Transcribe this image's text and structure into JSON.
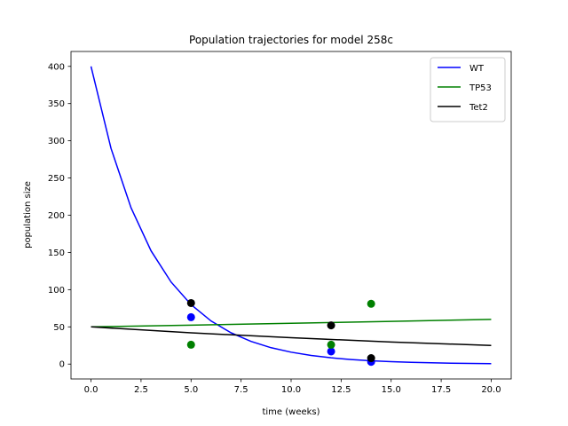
{
  "chart_data": {
    "type": "line",
    "title": "Population trajectories for model 258c",
    "xlabel": "time (weeks)",
    "ylabel": "population size",
    "xlim": [
      -1,
      21
    ],
    "ylim": [
      -20,
      420
    ],
    "xticks": [
      0.0,
      2.5,
      5.0,
      7.5,
      10.0,
      12.5,
      15.0,
      17.5,
      20.0
    ],
    "xtick_labels": [
      "0.0",
      "2.5",
      "5.0",
      "7.5",
      "10.0",
      "12.5",
      "15.0",
      "17.5",
      "20.0"
    ],
    "yticks": [
      0,
      50,
      100,
      150,
      200,
      250,
      300,
      350,
      400
    ],
    "ytick_labels": [
      "0",
      "50",
      "100",
      "150",
      "200",
      "250",
      "300",
      "350",
      "400"
    ],
    "grid": false,
    "legend_position": "top-right",
    "series": [
      {
        "name": "WT",
        "color": "#0000ff",
        "line": {
          "x": [
            0,
            1,
            2,
            3,
            4,
            5,
            6,
            7,
            8,
            9,
            10,
            11,
            12,
            13,
            14,
            15,
            16,
            17,
            18,
            19,
            20
          ],
          "y": [
            400,
            289.8,
            210.0,
            152.2,
            110.3,
            79.9,
            57.9,
            42.0,
            30.4,
            22.0,
            16.0,
            11.6,
            8.4,
            6.1,
            4.4,
            3.2,
            2.3,
            1.7,
            1.2,
            0.9,
            0.6
          ]
        },
        "points": {
          "x": [
            5,
            12,
            14
          ],
          "y": [
            63,
            17,
            3
          ]
        }
      },
      {
        "name": "TP53",
        "color": "#008000",
        "line": {
          "x": [
            0,
            5,
            10,
            15,
            20
          ],
          "y": [
            50,
            52.3,
            54.8,
            57.4,
            60
          ]
        },
        "points": {
          "x": [
            5,
            12,
            14
          ],
          "y": [
            26,
            26,
            81
          ]
        }
      },
      {
        "name": "Tet2",
        "color": "#000000",
        "line": {
          "x": [
            0,
            5,
            10,
            15,
            20
          ],
          "y": [
            50,
            42.0,
            35.4,
            29.7,
            25
          ]
        },
        "points": {
          "x": [
            5,
            12,
            14
          ],
          "y": [
            82,
            52,
            8
          ]
        }
      }
    ]
  }
}
